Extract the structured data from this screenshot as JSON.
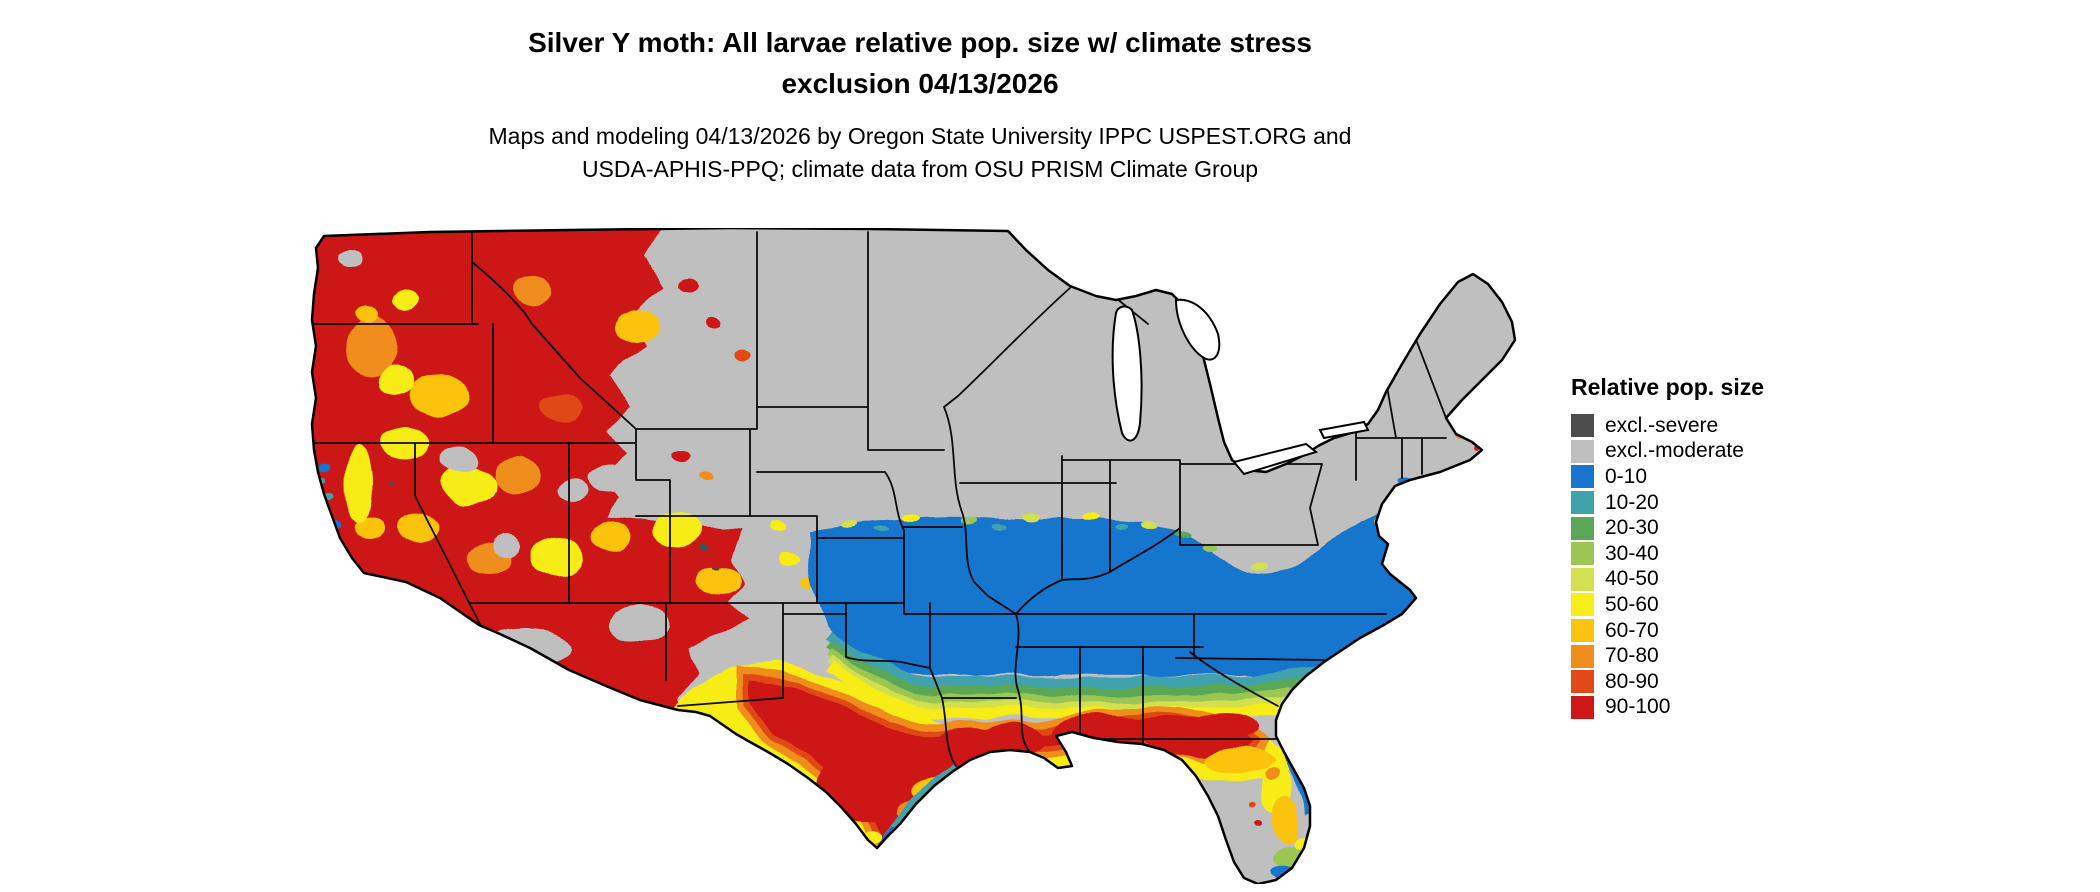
{
  "title": {
    "line1": "Silver Y moth: All larvae relative pop. size w/ climate stress",
    "line2": "exclusion 04/13/2026"
  },
  "subtitle": {
    "line1": "Maps and modeling 04/13/2026 by Oregon State University IPPC USPEST.ORG and",
    "line2": "USDA-APHIS-PPQ; climate data from OSU PRISM Climate Group"
  },
  "legend": {
    "title": "Relative pop. size",
    "items": [
      {
        "label": "excl.-severe",
        "color": "#4d4d4d"
      },
      {
        "label": "excl.-moderate",
        "color": "#bfbfbf"
      },
      {
        "label": "0-10",
        "color": "#1874cd"
      },
      {
        "label": "10-20",
        "color": "#3fa2ad"
      },
      {
        "label": "20-30",
        "color": "#5aa757"
      },
      {
        "label": "30-40",
        "color": "#9cc653"
      },
      {
        "label": "40-50",
        "color": "#d3e04e"
      },
      {
        "label": "50-60",
        "color": "#f8ec19"
      },
      {
        "label": "60-70",
        "color": "#fcc311"
      },
      {
        "label": "70-80",
        "color": "#ef8e1b"
      },
      {
        "label": "80-90",
        "color": "#e04a18"
      },
      {
        "label": "90-100",
        "color": "#cd1719"
      }
    ]
  },
  "map": {
    "region": "contiguous United States",
    "border_color": "#000000",
    "background": "#ffffff",
    "palette": {
      "excl_severe": "#4d4d4d",
      "excl_moderate": "#bfbfbf",
      "v0_10": "#1874cd",
      "v10_20": "#3fa2ad",
      "v20_30": "#5aa757",
      "v30_40": "#9cc653",
      "v40_50": "#d3e04e",
      "v50_60": "#f8ec19",
      "v60_70": "#fcc311",
      "v70_80": "#ef8e1b",
      "v80_90": "#e04a18",
      "v90_100": "#cd1719"
    },
    "zones": [
      {
        "area": "Northern tier: northern Plains, upper Midwest, Northeast",
        "value": "excl.-moderate"
      },
      {
        "area": "Pacific Northwest, Great Basin, Utah, western Colorado mountains",
        "value": "70-100 mosaic"
      },
      {
        "area": "Central transition band across Kansas, Missouri, Ohio Valley",
        "value": "20-60 speckle"
      },
      {
        "area": "Oklahoma, mid-South, Tennessee, interior Southeast",
        "value": "0-10"
      },
      {
        "area": "Central and south Texas, Gulf Coast states, south Georgia",
        "value": "50-100 core"
      },
      {
        "area": "Florida peninsula",
        "value": "mixed 0-80"
      },
      {
        "area": "Atlantic coastal plain",
        "value": "0-20 with warm specks"
      }
    ]
  }
}
